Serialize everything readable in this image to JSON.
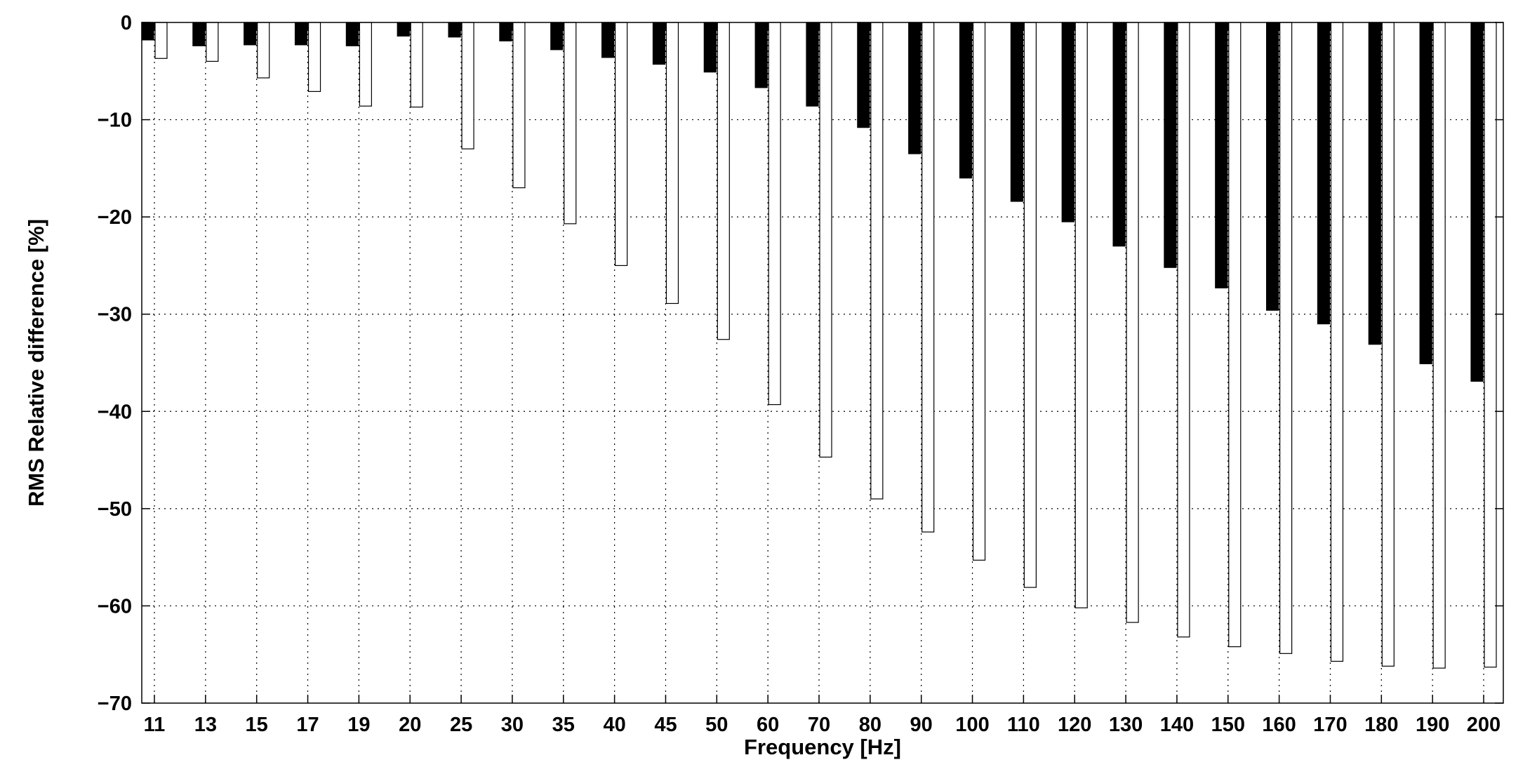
{
  "chart_data": {
    "type": "bar",
    "title": "",
    "xlabel": "Frequency [Hz]",
    "ylabel": "RMS Relative difference [%]",
    "ylim": [
      -70,
      0
    ],
    "yticks": [
      "0",
      "−10",
      "−20",
      "−30",
      "−40",
      "−50",
      "−60",
      "−70"
    ],
    "grid": true,
    "categories": [
      "11",
      "13",
      "15",
      "17",
      "19",
      "20",
      "25",
      "30",
      "35",
      "40",
      "45",
      "50",
      "60",
      "70",
      "80",
      "90",
      "100",
      "110",
      "120",
      "130",
      "140",
      "150",
      "160",
      "170",
      "180",
      "190",
      "200"
    ],
    "series": [
      {
        "color": "#000000",
        "values": [
          -1.8,
          -2.4,
          -2.3,
          -2.3,
          -2.4,
          -1.4,
          -1.5,
          -1.9,
          -2.8,
          -3.6,
          -4.3,
          -5.1,
          -6.7,
          -8.6,
          -10.8,
          -13.5,
          -16.0,
          -18.4,
          -20.5,
          -23.0,
          -25.2,
          -27.3,
          -29.6,
          -31.0,
          -33.1,
          -35.1,
          -36.9
        ]
      },
      {
        "color": "#ffffff",
        "values": [
          -3.7,
          -4.0,
          -5.7,
          -7.1,
          -8.6,
          -8.7,
          -13.0,
          -17.0,
          -20.7,
          -25.0,
          -28.9,
          -32.6,
          -39.3,
          -44.7,
          -49.0,
          -52.4,
          -55.3,
          -58.1,
          -60.2,
          -61.7,
          -63.2,
          -64.2,
          -64.9,
          -65.7,
          -66.2,
          -66.4,
          -66.3
        ]
      }
    ]
  }
}
